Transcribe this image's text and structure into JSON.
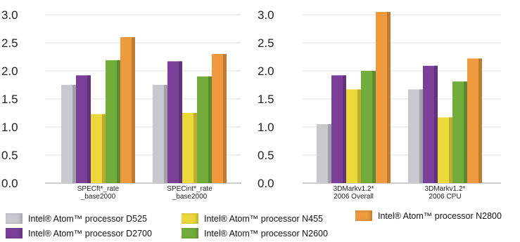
{
  "chart_data": [
    {
      "type": "bar",
      "categories": [
        [
          "SPECft*_rate",
          "_base2000"
        ],
        [
          "SPECint*_rate",
          "_base2000"
        ]
      ],
      "ylim": [
        0,
        3.0
      ],
      "yticks": [
        "0.0",
        "0.5",
        "1.0",
        "1.5",
        "2.0",
        "2.5",
        "3.0"
      ],
      "grid": true,
      "series": [
        {
          "name": "Intel® Atom™ processor D525",
          "color": "#c8c8cf",
          "values": [
            1.75,
            1.75
          ]
        },
        {
          "name": "Intel® Atom™ processor D2700",
          "color": "#7b3f9a",
          "values": [
            1.92,
            2.17
          ]
        },
        {
          "name": "Intel® Atom™ processor N455",
          "color": "#ecd83a",
          "values": [
            1.23,
            1.25
          ]
        },
        {
          "name": "Intel® Atom™ processor N2600",
          "color": "#72ad3c",
          "values": [
            2.19,
            1.9
          ]
        },
        {
          "name": "Intel® Atom™ processor N2800",
          "color": "#ef9a3f",
          "values": [
            2.6,
            2.3
          ]
        }
      ]
    },
    {
      "type": "bar",
      "categories": [
        [
          "3DMarkv1.2*",
          "2006 Overall"
        ],
        [
          "3DMarkv1.2*",
          "2006 CPU"
        ]
      ],
      "ylim": [
        0,
        3.0
      ],
      "yticks": [
        "0.0",
        "0.5",
        "1.0",
        "1.5",
        "2.0",
        "2.5",
        "3.0"
      ],
      "grid": true,
      "series": [
        {
          "name": "Intel® Atom™ processor D525",
          "color": "#c8c8cf",
          "values": [
            1.05,
            1.67
          ]
        },
        {
          "name": "Intel® Atom™ processor D2700",
          "color": "#7b3f9a",
          "values": [
            1.92,
            2.09
          ]
        },
        {
          "name": "Intel® Atom™ processor N455",
          "color": "#ecd83a",
          "values": [
            1.67,
            1.17
          ]
        },
        {
          "name": "Intel® Atom™ processor N2600",
          "color": "#72ad3c",
          "values": [
            2.0,
            1.81
          ]
        },
        {
          "name": "Intel® Atom™ processor N2800",
          "color": "#ef9a3f",
          "values": [
            3.05,
            2.22
          ]
        }
      ]
    }
  ],
  "legend": [
    {
      "label": "Intel® Atom™ processor D525",
      "color": "#c8c8cf"
    },
    {
      "label": "Intel® Atom™ processor D2700",
      "color": "#7b3f9a"
    },
    {
      "label": "Intel® Atom™ processor N455",
      "color": "#ecd83a"
    },
    {
      "label": "Intel® Atom™ processor N2600",
      "color": "#72ad3c"
    },
    {
      "label": "Intel® Atom™ processor N2800",
      "color": "#ef9a3f"
    }
  ]
}
